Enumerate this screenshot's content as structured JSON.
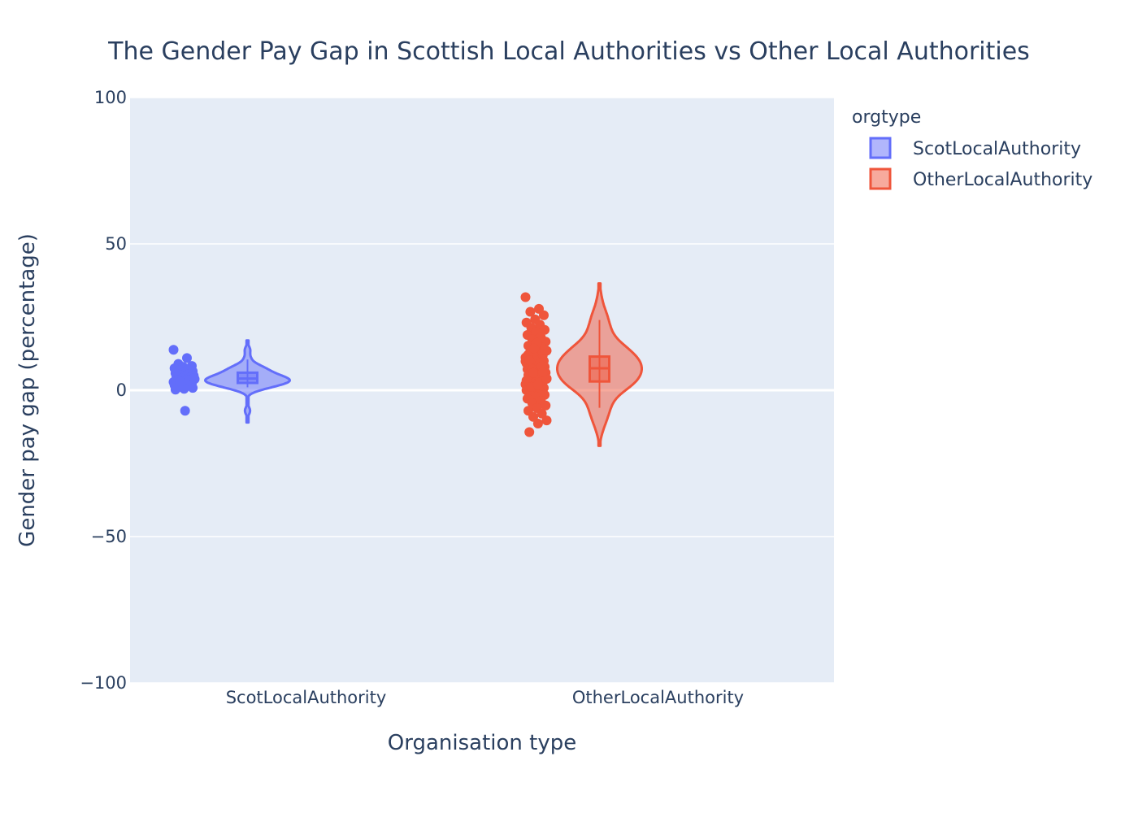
{
  "chart_data": {
    "type": "violin",
    "title": "The Gender Pay Gap in Scottish Local Authorities vs Other Local Authorities",
    "xlabel": "Organisation type",
    "ylabel": "Gender pay gap (percentage)",
    "ylim": [
      -100,
      100
    ],
    "yticks": [
      100,
      50,
      0,
      -50,
      -100
    ],
    "ytick_labels": [
      "100",
      "50",
      "0",
      "−50",
      "−100"
    ],
    "categories": [
      "ScotLocalAuthority",
      "OtherLocalAuthority"
    ],
    "legend_title": "orgtype",
    "legend_position": "top-right",
    "grid": true,
    "plot_background": "#e5ecf6",
    "series": [
      {
        "name": "ScotLocalAuthority",
        "color": "#636efa",
        "box": {
          "q1": 2.5,
          "median": 4.0,
          "q3": 6.0,
          "whisker_low": 1.0,
          "whisker_high": 10.5
        },
        "kde_range": [
          -11,
          17
        ],
        "points": [
          13.8,
          11.0,
          9.0,
          8.3,
          8.0,
          7.5,
          7.0,
          6.8,
          6.5,
          6.0,
          5.8,
          5.5,
          5.2,
          5.0,
          4.8,
          4.5,
          4.3,
          4.0,
          3.8,
          3.6,
          3.4,
          3.2,
          3.0,
          2.8,
          2.6,
          2.4,
          2.2,
          2.0,
          1.8,
          1.5,
          1.2,
          0.8,
          0.5,
          0.2,
          3.5,
          2.9,
          4.1,
          -7.0
        ]
      },
      {
        "name": "OtherLocalAuthority",
        "color": "#ef553b",
        "box": {
          "q1": 3.0,
          "median": 7.5,
          "q3": 11.5,
          "whisker_low": -6.0,
          "whisker_high": 24.0
        },
        "kde_range": [
          -19,
          36.5
        ],
        "points": [
          31.8,
          27.8,
          26.8,
          25.6,
          24.2,
          23.1,
          22.4,
          21.3,
          20.6,
          19.8,
          18.9,
          18.1,
          17.4,
          16.6,
          15.9,
          15.2,
          14.6,
          14.0,
          13.5,
          13.0,
          12.5,
          12.0,
          11.6,
          11.2,
          10.8,
          10.4,
          10.0,
          9.6,
          9.2,
          8.8,
          8.4,
          8.0,
          7.6,
          7.2,
          6.8,
          6.4,
          6.0,
          5.6,
          5.2,
          4.8,
          4.4,
          4.0,
          3.6,
          3.2,
          2.8,
          2.4,
          2.0,
          1.6,
          1.2,
          0.8,
          0.4,
          0.0,
          -0.5,
          -1.0,
          -1.6,
          -2.2,
          -2.9,
          -3.6,
          -4.4,
          -5.2,
          -6.1,
          -7.0,
          -8.0,
          -9.1,
          -10.3,
          -11.4,
          -14.3,
          12.8,
          10.6,
          9.9,
          8.6,
          7.8,
          6.5,
          5.4,
          3.3,
          2.6,
          1.1,
          13.7,
          15.4,
          11.8,
          9.4,
          7.1,
          4.2,
          16.2,
          12.2,
          8.2,
          5.9,
          3.9,
          1.9,
          10.2,
          6.2,
          14.3
        ]
      }
    ]
  }
}
